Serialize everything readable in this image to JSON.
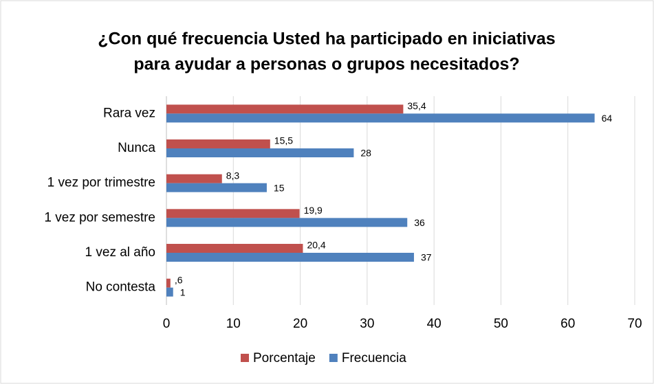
{
  "chart_data": {
    "type": "bar",
    "orientation": "horizontal",
    "title": [
      "¿Con qué frecuencia Usted ha participado en iniciativas",
      "para ayudar a personas o grupos necesitados?"
    ],
    "categories": [
      "Rara vez",
      "Nunca",
      "1 vez por trimestre",
      "1 vez por semestre",
      "1 vez al año",
      "No contesta"
    ],
    "series": [
      {
        "name": "Porcentaje",
        "color": "#c0504d",
        "values": [
          35.4,
          15.5,
          8.3,
          19.9,
          20.4,
          0.6
        ],
        "value_labels": [
          "35,4",
          "15,5",
          "8,3",
          "19,9",
          "20,4",
          ",6"
        ]
      },
      {
        "name": "Frecuencia",
        "color": "#4f81bd",
        "values": [
          64,
          28,
          15,
          36,
          37,
          1
        ]
      }
    ],
    "xlim": [
      0,
      70
    ],
    "xticks": [
      0,
      10,
      20,
      30,
      40,
      50,
      60,
      70
    ],
    "grid": true,
    "legend": "bottom"
  }
}
